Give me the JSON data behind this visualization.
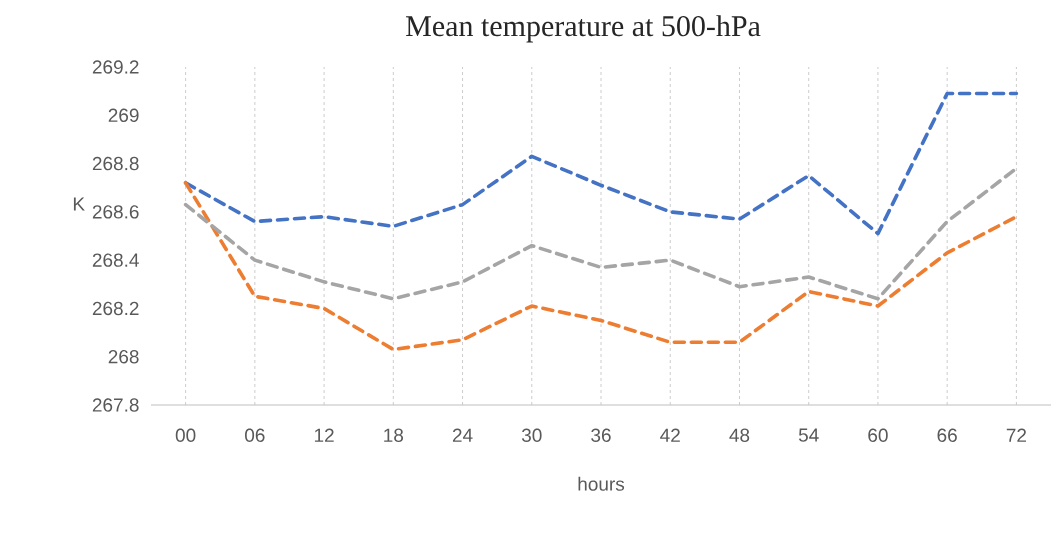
{
  "chart_data": {
    "type": "line",
    "title": "Mean temperature at 500-hPa",
    "xlabel": "hours",
    "ylabel": "K",
    "categories": [
      "00",
      "06",
      "12",
      "18",
      "24",
      "30",
      "36",
      "42",
      "48",
      "54",
      "60",
      "66",
      "72"
    ],
    "series": [
      {
        "color": "#4472c4",
        "values": [
          268.72,
          268.56,
          268.58,
          268.54,
          268.63,
          268.83,
          268.71,
          268.6,
          268.57,
          268.75,
          268.51,
          269.09,
          269.09
        ]
      },
      {
        "color": "#ed7d31",
        "values": [
          268.72,
          268.25,
          268.2,
          268.03,
          268.07,
          268.21,
          268.15,
          268.06,
          268.06,
          268.27,
          268.21,
          268.43,
          268.58
        ]
      },
      {
        "color": "#a5a5a5",
        "values": [
          268.63,
          268.4,
          268.31,
          268.24,
          268.31,
          268.46,
          268.37,
          268.4,
          268.29,
          268.33,
          268.24,
          268.56,
          268.78
        ]
      }
    ],
    "ylim": [
      267.8,
      269.2
    ],
    "yticks": [
      267.8,
      268,
      268.2,
      268.4,
      268.6,
      268.8,
      269,
      269.2
    ],
    "grid": "x",
    "marker": "none",
    "line_style": "dashed"
  }
}
